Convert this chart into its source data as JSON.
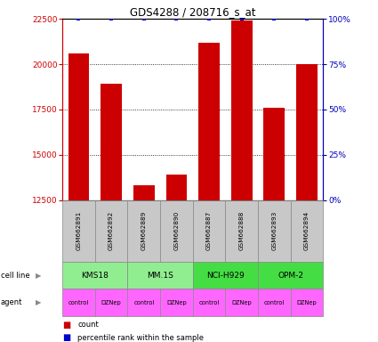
{
  "title": "GDS4288 / 208716_s_at",
  "samples": [
    "GSM662891",
    "GSM662892",
    "GSM662889",
    "GSM662890",
    "GSM662887",
    "GSM662888",
    "GSM662893",
    "GSM662894"
  ],
  "counts": [
    20600,
    18900,
    13300,
    13900,
    21200,
    22400,
    17600,
    20000
  ],
  "percentile_ranks": [
    100,
    100,
    100,
    100,
    100,
    100,
    100,
    100
  ],
  "cell_lines": [
    {
      "name": "KMS18",
      "start": 0,
      "end": 2,
      "color": "#90EE90"
    },
    {
      "name": "MM.1S",
      "start": 2,
      "end": 4,
      "color": "#90EE90"
    },
    {
      "name": "NCI-H929",
      "start": 4,
      "end": 6,
      "color": "#44DD44"
    },
    {
      "name": "OPM-2",
      "start": 6,
      "end": 8,
      "color": "#44DD44"
    }
  ],
  "agents": [
    "control",
    "DZNep",
    "control",
    "DZNep",
    "control",
    "DZNep",
    "control",
    "DZNep"
  ],
  "bar_color": "#CC0000",
  "dot_color": "#0000CC",
  "ylim_left": [
    12500,
    22500
  ],
  "ylim_right": [
    0,
    100
  ],
  "yticks_left": [
    12500,
    15000,
    17500,
    20000,
    22500
  ],
  "yticks_right": [
    0,
    25,
    50,
    75,
    100
  ],
  "left_axis_color": "#CC0000",
  "right_axis_color": "#0000BB",
  "agent_color": "#FF66FF",
  "sample_box_color": "#C8C8C8"
}
